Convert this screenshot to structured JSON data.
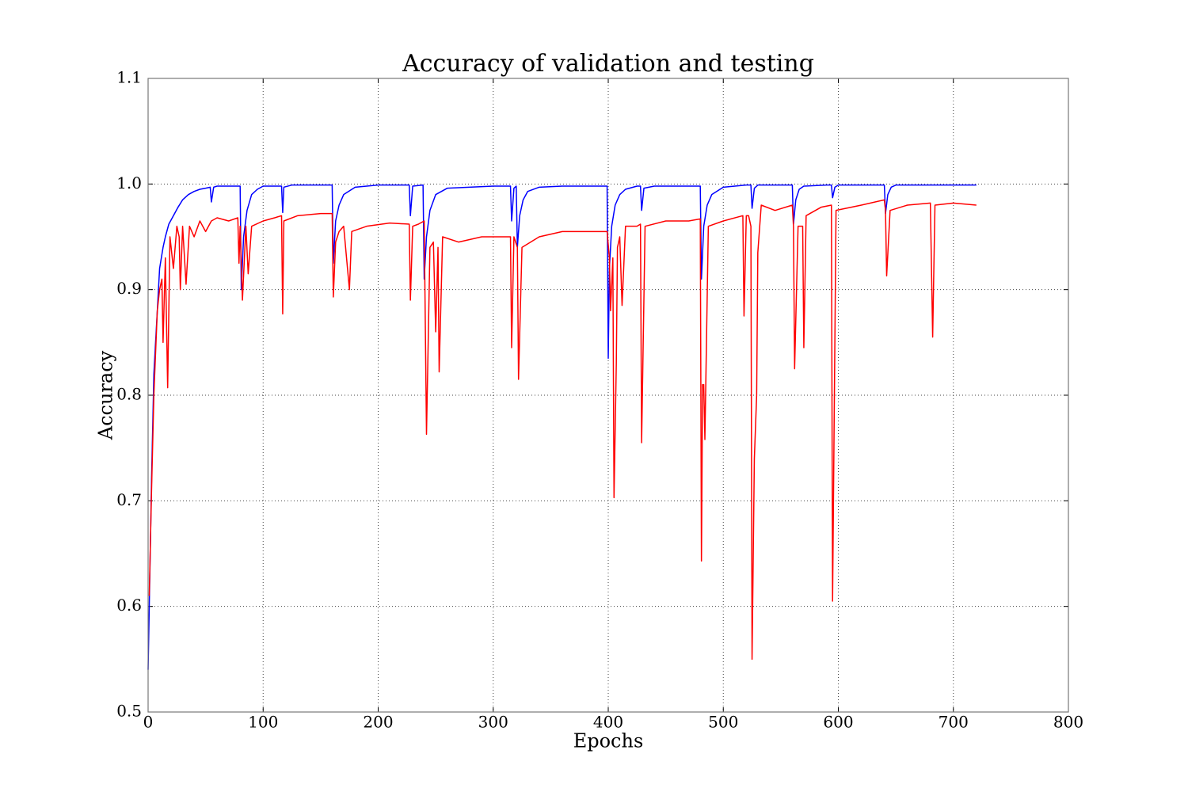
{
  "chart_data": {
    "type": "line",
    "title": "Accuracy of validation and testing",
    "x_label": "Epochs",
    "y_label": "Accuracy",
    "xlim": [
      0,
      800
    ],
    "xticks": [
      0,
      100,
      200,
      300,
      400,
      500,
      600,
      700,
      800
    ],
    "ylim": [
      0.5,
      1.1
    ],
    "yticks": [
      0.5,
      0.6,
      0.7,
      0.8,
      0.9,
      {
        "value": 1,
        "label": "1.0"
      },
      1.1
    ],
    "grid": true,
    "series": [
      {
        "color": "#0000ff",
        "x": [
          0,
          1,
          3,
          5,
          8,
          10,
          13,
          15,
          18,
          22,
          26,
          30,
          35,
          40,
          45,
          50,
          54,
          55,
          57,
          60,
          70,
          80,
          81,
          83,
          86,
          90,
          95,
          100,
          110,
          116,
          117,
          118,
          125,
          140,
          160,
          161,
          163,
          166,
          170,
          180,
          200,
          227,
          228,
          230,
          239,
          240,
          242,
          245,
          250,
          260,
          300,
          315,
          316,
          318,
          320,
          321,
          323,
          326,
          330,
          340,
          360,
          399,
          400,
          401,
          403,
          406,
          410,
          415,
          425,
          428,
          429,
          431,
          440,
          480,
          481,
          483,
          486,
          490,
          500,
          520,
          524,
          525,
          527,
          530,
          560,
          561,
          563,
          566,
          570,
          590,
          594,
          595,
          597,
          600,
          640,
          641,
          643,
          646,
          650,
          680,
          720
        ],
        "values": [
          0.54,
          0.6,
          0.72,
          0.82,
          0.88,
          0.92,
          0.94,
          0.95,
          0.962,
          0.97,
          0.978,
          0.985,
          0.99,
          0.993,
          0.995,
          0.996,
          0.997,
          0.983,
          0.997,
          0.998,
          0.998,
          0.998,
          0.9,
          0.95,
          0.975,
          0.99,
          0.995,
          0.998,
          0.998,
          0.998,
          0.973,
          0.997,
          0.999,
          0.999,
          0.999,
          0.925,
          0.965,
          0.98,
          0.99,
          0.997,
          0.999,
          0.999,
          0.97,
          0.998,
          0.999,
          0.91,
          0.95,
          0.975,
          0.99,
          0.996,
          0.998,
          0.998,
          0.965,
          0.996,
          0.998,
          0.94,
          0.97,
          0.985,
          0.993,
          0.997,
          0.998,
          0.998,
          0.835,
          0.92,
          0.96,
          0.98,
          0.99,
          0.995,
          0.998,
          0.998,
          0.975,
          0.996,
          0.998,
          0.998,
          0.91,
          0.96,
          0.98,
          0.99,
          0.997,
          0.999,
          0.999,
          0.977,
          0.996,
          0.999,
          0.999,
          0.962,
          0.985,
          0.995,
          0.998,
          0.999,
          0.999,
          0.987,
          0.997,
          0.999,
          0.999,
          0.972,
          0.99,
          0.997,
          0.999,
          0.999,
          0.999
        ]
      },
      {
        "color": "#ff0000",
        "x": [
          1,
          3,
          5,
          8,
          10,
          12,
          13,
          15,
          17,
          19,
          22,
          25,
          27,
          28,
          30,
          33,
          36,
          40,
          45,
          50,
          55,
          60,
          70,
          78,
          79,
          80,
          82,
          85,
          87,
          90,
          100,
          110,
          116,
          117,
          118,
          130,
          150,
          160,
          161,
          163,
          166,
          170,
          175,
          177,
          190,
          210,
          227,
          228,
          230,
          235,
          240,
          242,
          245,
          248,
          250,
          252,
          253,
          256,
          270,
          290,
          310,
          315,
          316,
          318,
          321,
          322,
          325,
          340,
          360,
          380,
          399,
          401,
          402,
          404,
          405,
          407,
          408,
          410,
          412,
          415,
          425,
          428,
          429,
          432,
          450,
          470,
          480,
          481,
          482,
          483,
          484,
          487,
          500,
          517,
          518,
          520,
          522,
          524,
          525,
          527,
          529,
          530,
          533,
          545,
          560,
          561,
          562,
          565,
          569,
          570,
          572,
          585,
          594,
          595,
          598,
          620,
          640,
          641,
          642,
          645,
          660,
          680,
          682,
          684,
          700,
          720
        ],
        "values": [
          0.61,
          0.71,
          0.8,
          0.88,
          0.9,
          0.91,
          0.85,
          0.93,
          0.807,
          0.95,
          0.92,
          0.96,
          0.95,
          0.9,
          0.96,
          0.905,
          0.96,
          0.95,
          0.965,
          0.955,
          0.965,
          0.968,
          0.965,
          0.968,
          0.925,
          0.96,
          0.89,
          0.96,
          0.915,
          0.96,
          0.965,
          0.968,
          0.97,
          0.877,
          0.965,
          0.97,
          0.972,
          0.972,
          0.893,
          0.945,
          0.955,
          0.96,
          0.9,
          0.955,
          0.96,
          0.963,
          0.962,
          0.89,
          0.96,
          0.962,
          0.965,
          0.763,
          0.94,
          0.945,
          0.86,
          0.94,
          0.822,
          0.95,
          0.945,
          0.95,
          0.95,
          0.95,
          0.845,
          0.95,
          0.94,
          0.815,
          0.94,
          0.95,
          0.955,
          0.955,
          0.955,
          0.93,
          0.88,
          0.93,
          0.703,
          0.83,
          0.94,
          0.95,
          0.885,
          0.96,
          0.96,
          0.962,
          0.755,
          0.96,
          0.965,
          0.965,
          0.967,
          0.643,
          0.81,
          0.81,
          0.758,
          0.96,
          0.965,
          0.97,
          0.875,
          0.97,
          0.97,
          0.96,
          0.55,
          0.74,
          0.8,
          0.935,
          0.98,
          0.975,
          0.98,
          0.96,
          0.825,
          0.96,
          0.96,
          0.845,
          0.97,
          0.978,
          0.98,
          0.605,
          0.975,
          0.98,
          0.985,
          0.975,
          0.913,
          0.975,
          0.98,
          0.982,
          0.855,
          0.98,
          0.982,
          0.98
        ]
      }
    ]
  }
}
